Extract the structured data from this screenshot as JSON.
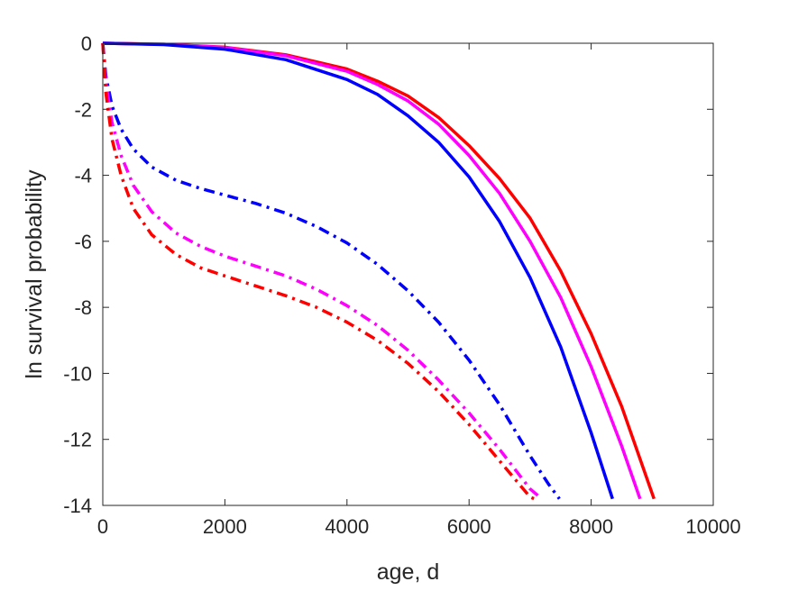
{
  "chart_data": {
    "type": "line",
    "xlabel": "age, d",
    "ylabel": "ln survival probability",
    "xlim": [
      0,
      10000
    ],
    "ylim": [
      -14,
      0
    ],
    "xticks": [
      0,
      2000,
      4000,
      6000,
      8000,
      10000
    ],
    "yticks": [
      0,
      -2,
      -4,
      -6,
      -8,
      -10,
      -12,
      -14
    ],
    "xtick_labels": [
      "0",
      "2000",
      "4000",
      "6000",
      "8000",
      "10000"
    ],
    "ytick_labels": [
      "0",
      "-2",
      "-4",
      "-6",
      "-8",
      "-10",
      "-12",
      "-14"
    ],
    "grid": false,
    "box": true,
    "series": [
      {
        "color": "#ff0000",
        "style": "solid",
        "x": [
          0,
          1000,
          2000,
          3000,
          4000,
          4500,
          5000,
          5500,
          6000,
          6500,
          7000,
          7500,
          8000,
          8500,
          9030
        ],
        "y": [
          0,
          -0.03,
          -0.12,
          -0.35,
          -0.78,
          -1.15,
          -1.6,
          -2.25,
          -3.1,
          -4.1,
          -5.3,
          -6.9,
          -8.8,
          -11.0,
          -13.8
        ]
      },
      {
        "color": "#ff00ff",
        "style": "solid",
        "x": [
          0,
          1000,
          2000,
          3000,
          4000,
          4500,
          5000,
          5500,
          6000,
          6500,
          7000,
          7500,
          8000,
          8500,
          8800
        ],
        "y": [
          0,
          -0.03,
          -0.13,
          -0.38,
          -0.85,
          -1.25,
          -1.75,
          -2.45,
          -3.4,
          -4.55,
          -6.0,
          -7.7,
          -9.8,
          -12.2,
          -13.8
        ]
      },
      {
        "color": "#0000ff",
        "style": "solid",
        "x": [
          0,
          1000,
          2000,
          3000,
          4000,
          4500,
          5000,
          5500,
          6000,
          6500,
          7000,
          7500,
          8000,
          8350
        ],
        "y": [
          0,
          -0.04,
          -0.18,
          -0.5,
          -1.1,
          -1.55,
          -2.2,
          -3.0,
          -4.05,
          -5.4,
          -7.1,
          -9.2,
          -11.8,
          -13.8
        ]
      },
      {
        "color": "#0000ff",
        "style": "dashdot",
        "x": [
          0,
          50,
          150,
          300,
          500,
          800,
          1200,
          1600,
          2000,
          2500,
          3000,
          3500,
          4000,
          4500,
          5000,
          5500,
          6000,
          6500,
          7000,
          7300,
          7480
        ],
        "y": [
          0,
          -1.0,
          -1.9,
          -2.6,
          -3.2,
          -3.75,
          -4.15,
          -4.4,
          -4.6,
          -4.85,
          -5.15,
          -5.55,
          -6.05,
          -6.7,
          -7.5,
          -8.45,
          -9.6,
          -10.95,
          -12.5,
          -13.35,
          -13.8
        ]
      },
      {
        "color": "#ff00ff",
        "style": "dashdot",
        "x": [
          0,
          50,
          150,
          300,
          500,
          800,
          1200,
          1600,
          2000,
          2500,
          3000,
          3500,
          4000,
          4500,
          5000,
          5500,
          6000,
          6500,
          7000,
          7190
        ],
        "y": [
          0,
          -1.2,
          -2.4,
          -3.4,
          -4.3,
          -5.1,
          -5.75,
          -6.15,
          -6.45,
          -6.75,
          -7.05,
          -7.45,
          -7.95,
          -8.55,
          -9.3,
          -10.2,
          -11.2,
          -12.3,
          -13.5,
          -13.8
        ]
      },
      {
        "color": "#ff0000",
        "style": "dashdot",
        "x": [
          0,
          50,
          150,
          300,
          500,
          800,
          1200,
          1600,
          2000,
          2500,
          3000,
          3500,
          4000,
          4500,
          5000,
          5500,
          6000,
          6500,
          7000,
          7070
        ],
        "y": [
          0,
          -1.5,
          -2.9,
          -4.0,
          -5.0,
          -5.8,
          -6.4,
          -6.8,
          -7.05,
          -7.35,
          -7.65,
          -8.0,
          -8.45,
          -9.0,
          -9.7,
          -10.55,
          -11.55,
          -12.65,
          -13.75,
          -13.8
        ]
      }
    ]
  }
}
